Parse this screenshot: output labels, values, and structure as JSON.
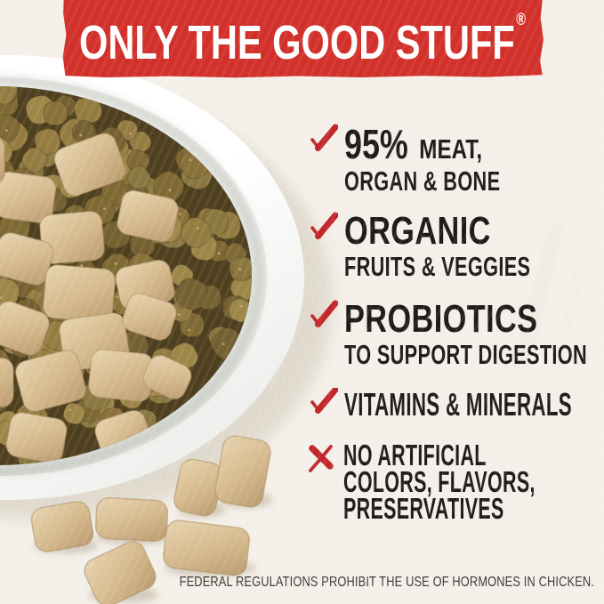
{
  "banner": {
    "text": "ONLY THE GOOD STUFF",
    "registered_mark": "®",
    "bg_color": "#d2302a",
    "text_color": "#ffffff"
  },
  "benefits": [
    {
      "icon": "check",
      "big": "95%",
      "line1": "MEAT,",
      "line2": "ORGAN & BONE"
    },
    {
      "icon": "check",
      "big": "ORGANIC",
      "line2": "FRUITS & VEGGIES"
    },
    {
      "icon": "check",
      "big": "PROBIOTICS",
      "line2": "TO SUPPORT DIGESTION"
    },
    {
      "icon": "check",
      "line1": "VITAMINS & MINERALS"
    },
    {
      "icon": "cross",
      "line1": "NO ARTIFICIAL",
      "line2": "COLORS, FLAVORS,",
      "line3": "PRESERVATIVES"
    }
  ],
  "disclaimer": "FEDERAL REGULATIONS PROHIBIT THE USE OF HORMONES IN CHICKEN.",
  "colors": {
    "background": "#f4f0e9",
    "banner_red": "#d2302a",
    "mark_red": "#c1272a",
    "text_dark": "#1e1b1a",
    "bowl_white": "#ffffff",
    "bowl_shade": "#e6e8e3",
    "food_gap_brown": "#4e3f1e",
    "kibble_browns": [
      "#947c41",
      "#89713a",
      "#7e6933",
      "#9d8648",
      "#746031",
      "#8a7740"
    ],
    "chunk_tan_light": "#e8d4b0",
    "chunk_tan_mid": "#d5b98c",
    "chunk_tan_dark": "#bfa074"
  },
  "photo": {
    "alt": "white bowl filled with brown kibble and freeze-dried raw chunks, loose chunks scattered beside the bowl"
  }
}
